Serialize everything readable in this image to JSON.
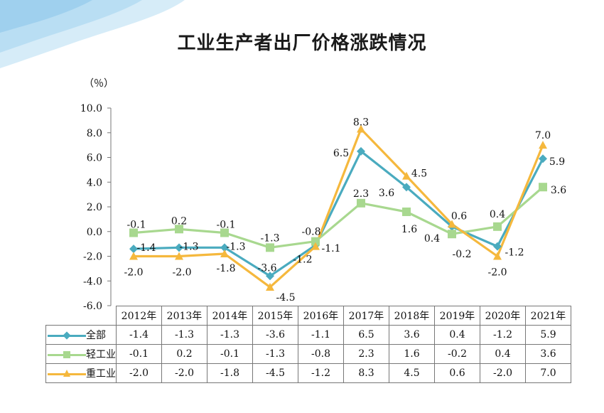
{
  "title": "工业生产者出厂价格涨跌情况",
  "unit": "（％）",
  "colors": {
    "all": "#4aabbf",
    "light": "#a8d88f",
    "heavy": "#f5b83d"
  },
  "chart_data": {
    "type": "line",
    "title": "工业生产者出厂价格涨跌情况",
    "ylabel": "（％）",
    "xlabel": "",
    "ylim": [
      -6.0,
      10.0
    ],
    "ytick_step": 2.0,
    "yticks": [
      "-6.0",
      "-4.0",
      "-2.0",
      "0.0",
      "2.0",
      "4.0",
      "6.0",
      "8.0",
      "10.0"
    ],
    "grid": false,
    "legend": "data-table",
    "categories": [
      "2012年",
      "2013年",
      "2014年",
      "2015年",
      "2016年",
      "2017年",
      "2018年",
      "2019年",
      "2020年",
      "2021年"
    ],
    "series": [
      {
        "name": "全部",
        "key": "all",
        "marker": "diamond",
        "values": [
          -1.4,
          -1.3,
          -1.3,
          -3.6,
          -1.1,
          6.5,
          3.6,
          0.4,
          -1.2,
          5.9
        ],
        "labels": [
          "-1.4",
          "-1.3",
          "-1.3",
          "-3.6",
          "-1.1",
          "6.5",
          "3.6",
          "0.4",
          "-1.2",
          "5.9"
        ]
      },
      {
        "name": "轻工业",
        "key": "light",
        "marker": "square",
        "values": [
          -0.1,
          0.2,
          -0.1,
          -1.3,
          -0.8,
          2.3,
          1.6,
          -0.2,
          0.4,
          3.6
        ],
        "labels": [
          "-0.1",
          "0.2",
          "-0.1",
          "-1.3",
          "-0.8",
          "2.3",
          "1.6",
          "-0.2",
          "0.4",
          "3.6"
        ]
      },
      {
        "name": "重工业",
        "key": "heavy",
        "marker": "triangle",
        "values": [
          -2.0,
          -2.0,
          -1.8,
          -4.5,
          -1.2,
          8.3,
          4.5,
          0.6,
          -2.0,
          7.0
        ],
        "labels": [
          "-2.0",
          "-2.0",
          "-1.8",
          "-4.5",
          "-1.2",
          "8.3",
          "4.5",
          "0.6",
          "-2.0",
          "7.0"
        ]
      }
    ]
  }
}
